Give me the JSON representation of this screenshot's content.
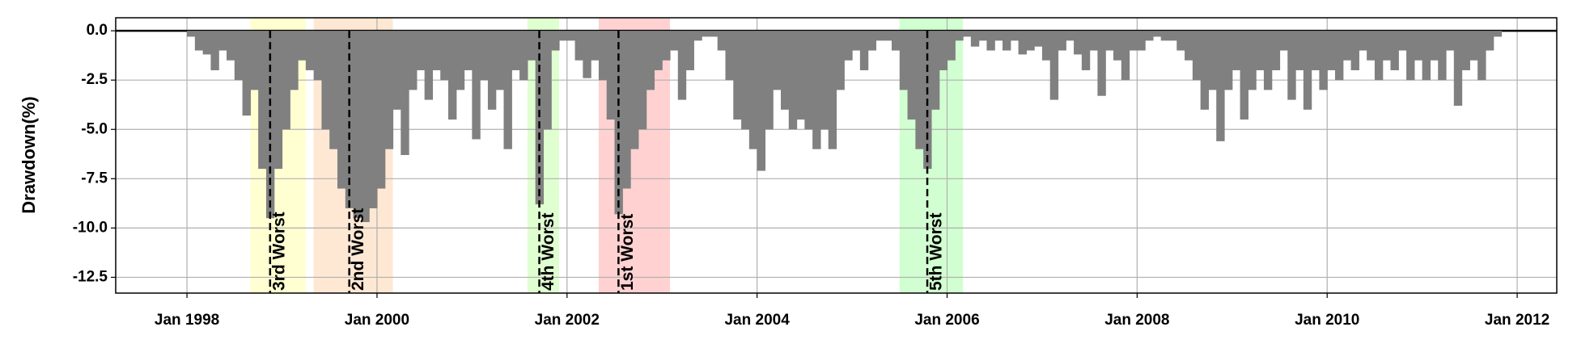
{
  "chart_data": {
    "type": "drawdown",
    "ylabel": "Drawdown(%)",
    "color": "#808080",
    "grid": true,
    "xlim": [
      "1997-04",
      "2012-06"
    ],
    "ylim": [
      -13.3,
      0.66
    ],
    "xticks": [
      {
        "value": "1998-01",
        "label": "Jan 1998"
      },
      {
        "value": "2000-01",
        "label": "Jan 2000"
      },
      {
        "value": "2002-01",
        "label": "Jan 2002"
      },
      {
        "value": "2004-01",
        "label": "Jan 2004"
      },
      {
        "value": "2006-01",
        "label": "Jan 2006"
      },
      {
        "value": "2008-01",
        "label": "Jan 2008"
      },
      {
        "value": "2010-01",
        "label": "Jan 2010"
      },
      {
        "value": "2012-01",
        "label": "Jan 2012"
      }
    ],
    "yticks": [
      {
        "value": 0,
        "label": "0.0"
      },
      {
        "value": -2.5,
        "label": "-2.5"
      },
      {
        "value": -5,
        "label": "-5.0"
      },
      {
        "value": -7.5,
        "label": "-7.5"
      },
      {
        "value": -10,
        "label": "-10.0"
      },
      {
        "value": -12.5,
        "label": "-12.5"
      }
    ],
    "periods": [
      {
        "label": "1st Worst",
        "start": "2002-05",
        "end": "2003-01",
        "valley": "2002-07",
        "color": "#ffb3b3"
      },
      {
        "label": "2nd Worst",
        "start": "1999-05",
        "end": "2000-02",
        "valley": "1999-09",
        "color": "#fdd8b5"
      },
      {
        "label": "3rd Worst",
        "start": "1998-09",
        "end": "1999-03",
        "valley": "1998-11",
        "color": "#ffffb3"
      },
      {
        "label": "4th Worst",
        "start": "2001-08",
        "end": "2001-11",
        "valley": "2001-09",
        "color": "#ccffb3"
      },
      {
        "label": "5th Worst",
        "start": "2005-07",
        "end": "2006-02",
        "valley": "2005-10",
        "color": "#b3ffb3"
      }
    ],
    "x": [
      "1998-01",
      "1998-02",
      "1998-03",
      "1998-04",
      "1998-05",
      "1998-06",
      "1998-07",
      "1998-08",
      "1998-09",
      "1998-10",
      "1998-11",
      "1998-12",
      "1999-01",
      "1999-02",
      "1999-03",
      "1999-04",
      "1999-05",
      "1999-06",
      "1999-07",
      "1999-08",
      "1999-09",
      "1999-10",
      "1999-11",
      "1999-12",
      "2000-01",
      "2000-02",
      "2000-03",
      "2000-04",
      "2000-05",
      "2000-06",
      "2000-07",
      "2000-08",
      "2000-09",
      "2000-10",
      "2000-11",
      "2000-12",
      "2001-01",
      "2001-02",
      "2001-03",
      "2001-04",
      "2001-05",
      "2001-06",
      "2001-07",
      "2001-08",
      "2001-09",
      "2001-10",
      "2001-11",
      "2001-12",
      "2002-01",
      "2002-02",
      "2002-03",
      "2002-04",
      "2002-05",
      "2002-06",
      "2002-07",
      "2002-08",
      "2002-09",
      "2002-10",
      "2002-11",
      "2002-12",
      "2003-01",
      "2003-02",
      "2003-03",
      "2003-04",
      "2003-05",
      "2003-06",
      "2003-07",
      "2003-08",
      "2003-09",
      "2003-10",
      "2003-11",
      "2003-12",
      "2004-01",
      "2004-02",
      "2004-03",
      "2004-04",
      "2004-05",
      "2004-06",
      "2004-07",
      "2004-08",
      "2004-09",
      "2004-10",
      "2004-11",
      "2004-12",
      "2005-01",
      "2005-02",
      "2005-03",
      "2005-04",
      "2005-05",
      "2005-06",
      "2005-07",
      "2005-08",
      "2005-09",
      "2005-10",
      "2005-11",
      "2005-12",
      "2006-01",
      "2006-02",
      "2006-03",
      "2006-04",
      "2006-05",
      "2006-06",
      "2006-07",
      "2006-08",
      "2006-09",
      "2006-10",
      "2006-11",
      "2006-12",
      "2007-01",
      "2007-02",
      "2007-03",
      "2007-04",
      "2007-05",
      "2007-06",
      "2007-07",
      "2007-08",
      "2007-09",
      "2007-10",
      "2007-11",
      "2007-12",
      "2008-01",
      "2008-02",
      "2008-03",
      "2008-04",
      "2008-05",
      "2008-06",
      "2008-07",
      "2008-08",
      "2008-09",
      "2008-10",
      "2008-11",
      "2008-12",
      "2009-01",
      "2009-02",
      "2009-03",
      "2009-04",
      "2009-05",
      "2009-06",
      "2009-07",
      "2009-08",
      "2009-09",
      "2009-10",
      "2009-11",
      "2009-12",
      "2010-01",
      "2010-02",
      "2010-03",
      "2010-04",
      "2010-05",
      "2010-06",
      "2010-07",
      "2010-08",
      "2010-09",
      "2010-10",
      "2010-11",
      "2010-12",
      "2011-01",
      "2011-02",
      "2011-03",
      "2011-04",
      "2011-05",
      "2011-06",
      "2011-07",
      "2011-08",
      "2011-09",
      "2011-10"
    ],
    "values": [
      -0.3,
      -1,
      -1.2,
      -2,
      -1,
      -1.5,
      -2.5,
      -4.3,
      -3,
      -7,
      -9.5,
      -7,
      -5,
      -3,
      -1.5,
      -2,
      -2.5,
      -5,
      -6,
      -8,
      -9,
      -9.5,
      -9.7,
      -9,
      -8,
      -6,
      -4,
      -6.3,
      -3,
      -2,
      -3.5,
      -2,
      -2.5,
      -4.5,
      -3,
      -2,
      -5.5,
      -2.5,
      -4,
      -3,
      -6,
      -2,
      -2.5,
      -1.5,
      -8.8,
      -5,
      -1,
      -0.5,
      -0.5,
      -1.5,
      -2.4,
      -1.5,
      -2.5,
      -4.5,
      -9.3,
      -8,
      -6,
      -5,
      -3,
      -2,
      -1.5,
      -1,
      -3.5,
      -2,
      -0.5,
      -0.3,
      -0.3,
      -1,
      -2.5,
      -4.5,
      -5,
      -6,
      -7.1,
      -5,
      -3,
      -4,
      -5,
      -4.5,
      -5,
      -6,
      -5,
      -6,
      -3,
      -1.5,
      -1,
      -2,
      -1,
      -0.5,
      -0.5,
      -1,
      -3,
      -4.5,
      -6,
      -7,
      -4,
      -2,
      -1.5,
      -0.5,
      -0.3,
      -0.8,
      -0.5,
      -1,
      -0.5,
      -1,
      -0.5,
      -1.2,
      -1,
      -0.8,
      -1.5,
      -3.5,
      -1,
      -0.5,
      -1.2,
      -2,
      -1,
      -3.3,
      -1,
      -1.5,
      -2.5,
      -1,
      -1,
      -0.5,
      -0.3,
      -0.5,
      -0.5,
      -1,
      -1.5,
      -2.5,
      -4,
      -3,
      -5.6,
      -3,
      -2,
      -4.5,
      -3,
      -2,
      -3,
      -2,
      -1,
      -3.5,
      -2,
      -4,
      -2,
      -3,
      -2,
      -2.5,
      -1.5,
      -2,
      -1,
      -1.5,
      -2.5,
      -1.5,
      -2,
      -1,
      -2.5,
      -1.5,
      -2.5,
      -1.5,
      -2.5,
      -1,
      -3.8,
      -2,
      -1.5,
      -2.5,
      -1,
      -0.3
    ]
  }
}
